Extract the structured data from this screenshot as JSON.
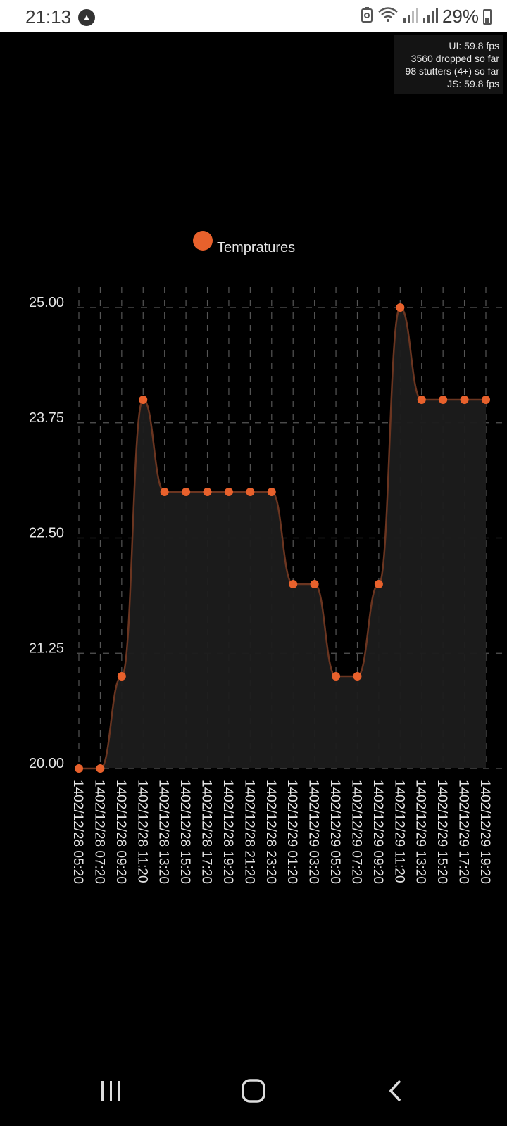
{
  "status_bar": {
    "time": "21:13",
    "app_icon": "navigation-arrow-icon",
    "battery_percent": "29%",
    "icons": [
      "recycle-battery-icon",
      "wifi-icon",
      "signal-icon",
      "signal-icon",
      "battery-icon"
    ]
  },
  "perf_monitor": {
    "ui": "UI: 59.8 fps",
    "dropped": "3560 dropped so far",
    "stutters": "98 stutters (4+) so far",
    "js": "JS: 59.8 fps"
  },
  "colors": {
    "accent": "#e8612c",
    "area_fill": "#1c1c1c",
    "line": "#6b3520",
    "grid": "#555555"
  },
  "chart_data": {
    "type": "area",
    "series": [
      {
        "name": "Tempratures",
        "values": [
          20,
          20,
          21,
          24,
          23,
          23,
          23,
          23,
          23,
          23,
          22,
          22,
          21,
          21,
          22,
          25,
          24,
          24,
          24,
          24
        ]
      }
    ],
    "x": [
      "1402/12/28 05:20",
      "1402/12/28 07:20",
      "1402/12/28 09:20",
      "1402/12/28 11:20",
      "1402/12/28 13:20",
      "1402/12/28 15:20",
      "1402/12/28 17:20",
      "1402/12/28 19:20",
      "1402/12/28 21:20",
      "1402/12/28 23:20",
      "1402/12/29 01:20",
      "1402/12/29 03:20",
      "1402/12/29 05:20",
      "1402/12/29 07:20",
      "1402/12/29 09:20",
      "1402/12/29 11:20",
      "1402/12/29 13:20",
      "1402/12/29 15:20",
      "1402/12/29 17:20",
      "1402/12/29 19:20"
    ],
    "x_axis_labels_shown": [
      "1402/12/28 05:20",
      "1402/12/28 07:20",
      "1402/12/28 09:20",
      "1402/12/28 11:20",
      "1402/12/28 13:20",
      "1402/12/28 15:20",
      "1402/12/28 17:20",
      "1402/12/28 19:20",
      "1402/12/28 21:20",
      "1402/12/28 23:20",
      "1402/12/29 01:20",
      "1402/12/29 03:20",
      "1402/12/29 05:20",
      "1402/12/29 07:20",
      "1402/12/29 09:20",
      "1402/12/29 11:20",
      "1402/12/29 13:20",
      "1402/12/29 15:20",
      "1402/12/29 17:20",
      "1402/12/29 19:20"
    ],
    "y_ticks": [
      "25.00",
      "23.75",
      "22.50",
      "21.25",
      "20.00"
    ],
    "ylim": [
      20,
      25
    ],
    "grid": true,
    "legend": "top-center"
  }
}
